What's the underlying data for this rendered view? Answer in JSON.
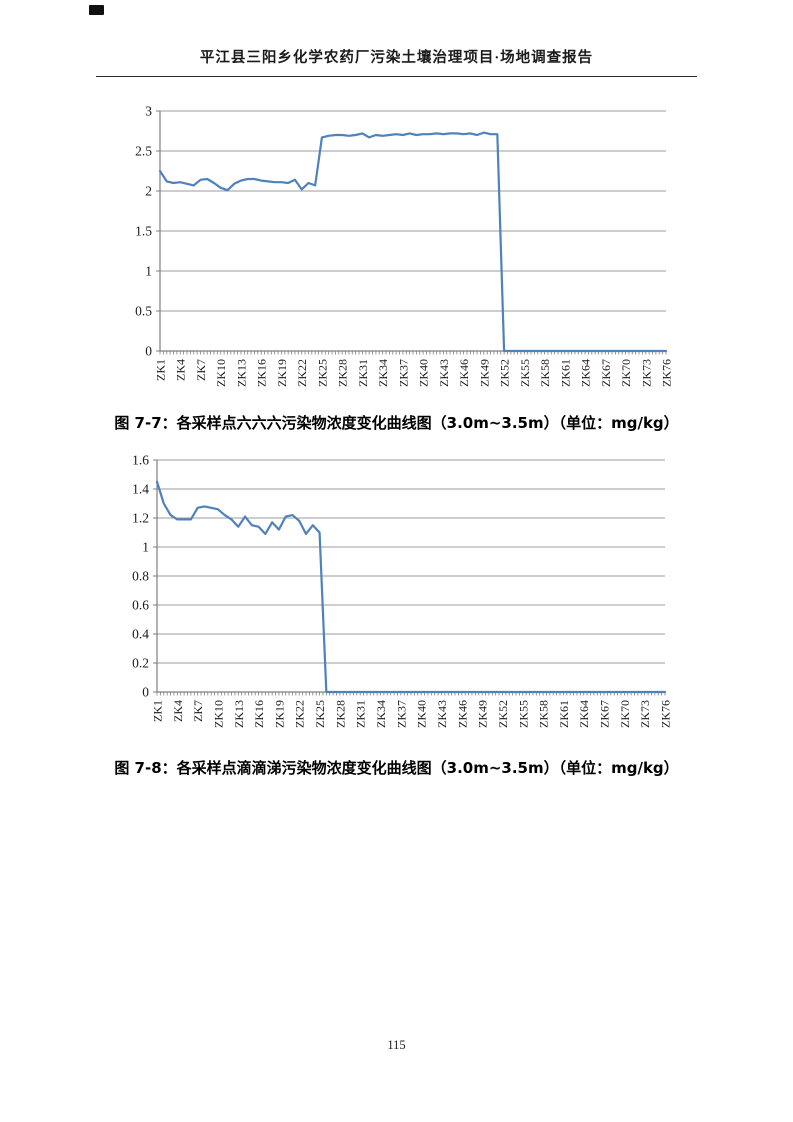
{
  "header": {
    "title": "平江县三阳乡化学农药厂污染土壤治理项目·场地调查报告"
  },
  "footer": {
    "page_number": "115"
  },
  "chart_data": [
    {
      "type": "line",
      "title": "图 7-7：各采样点六六六污染物浓度变化曲线图（3.0m~3.5m）（单位：mg/kg）",
      "xlabel": "",
      "ylabel": "",
      "unit": "mg/kg",
      "legend": "none",
      "grid": true,
      "ylim": [
        0,
        3
      ],
      "y_tick_labels": [
        "0",
        "0.5",
        "1",
        "1.5",
        "2",
        "2.5",
        "3"
      ],
      "x_tick_labels": [
        "ZK1",
        "ZK4",
        "ZK7",
        "ZK10",
        "ZK13",
        "ZK16",
        "ZK19",
        "ZK22",
        "ZK25",
        "ZK28",
        "ZK31",
        "ZK34",
        "ZK37",
        "ZK40",
        "ZK43",
        "ZK46",
        "ZK49",
        "ZK52",
        "ZK55",
        "ZK58",
        "ZK61",
        "ZK64",
        "ZK67",
        "ZK70",
        "ZK73",
        "ZK76"
      ],
      "label_every": 3,
      "line_color": "#4F81BD",
      "values": [
        2.25,
        2.12,
        2.1,
        2.11,
        2.09,
        2.07,
        2.14,
        2.15,
        2.1,
        2.04,
        2.01,
        2.09,
        2.13,
        2.15,
        2.15,
        2.13,
        2.12,
        2.11,
        2.11,
        2.1,
        2.14,
        2.02,
        2.1,
        2.07,
        2.67,
        2.69,
        2.7,
        2.7,
        2.69,
        2.7,
        2.72,
        2.67,
        2.7,
        2.69,
        2.7,
        2.71,
        2.7,
        2.72,
        2.7,
        2.71,
        2.71,
        2.72,
        2.71,
        2.72,
        2.72,
        2.71,
        2.72,
        2.7,
        2.73,
        2.71,
        2.71,
        0,
        0,
        0,
        0,
        0,
        0,
        0,
        0,
        0,
        0,
        0,
        0,
        0,
        0,
        0,
        0,
        0,
        0,
        0,
        0,
        0,
        0,
        0,
        0,
        0
      ]
    },
    {
      "type": "line",
      "title": "图 7-8：各采样点滴滴涕污染物浓度变化曲线图（3.0m~3.5m）（单位：mg/kg）",
      "xlabel": "",
      "ylabel": "",
      "unit": "mg/kg",
      "legend": "none",
      "grid": true,
      "ylim": [
        0,
        1.6
      ],
      "y_tick_labels": [
        "0",
        "0.2",
        "0.4",
        "0.6",
        "0.8",
        "1",
        "1.2",
        "1.4",
        "1.6"
      ],
      "x_tick_labels": [
        "ZK1",
        "ZK4",
        "ZK7",
        "ZK10",
        "ZK13",
        "ZK16",
        "ZK19",
        "ZK22",
        "ZK25",
        "ZK28",
        "ZK31",
        "ZK34",
        "ZK37",
        "ZK40",
        "ZK43",
        "ZK46",
        "ZK49",
        "ZK52",
        "ZK55",
        "ZK58",
        "ZK61",
        "ZK64",
        "ZK67",
        "ZK70",
        "ZK73",
        "ZK76"
      ],
      "label_every": 3,
      "line_color": "#4F81BD",
      "values": [
        1.45,
        1.3,
        1.22,
        1.19,
        1.19,
        1.19,
        1.27,
        1.28,
        1.27,
        1.26,
        1.22,
        1.19,
        1.14,
        1.21,
        1.15,
        1.14,
        1.09,
        1.17,
        1.12,
        1.21,
        1.22,
        1.18,
        1.09,
        1.15,
        1.1,
        0,
        0,
        0,
        0,
        0,
        0,
        0,
        0,
        0,
        0,
        0,
        0,
        0,
        0,
        0,
        0,
        0,
        0,
        0,
        0,
        0,
        0,
        0,
        0,
        0,
        0,
        0,
        0,
        0,
        0,
        0,
        0,
        0,
        0,
        0,
        0,
        0,
        0,
        0,
        0,
        0,
        0,
        0,
        0,
        0,
        0,
        0,
        0,
        0,
        0,
        0
      ]
    }
  ],
  "style": {
    "line_color": "#4F81BD",
    "grid_color": "#9b9b9b",
    "axis_color": "#7f7f7f"
  }
}
